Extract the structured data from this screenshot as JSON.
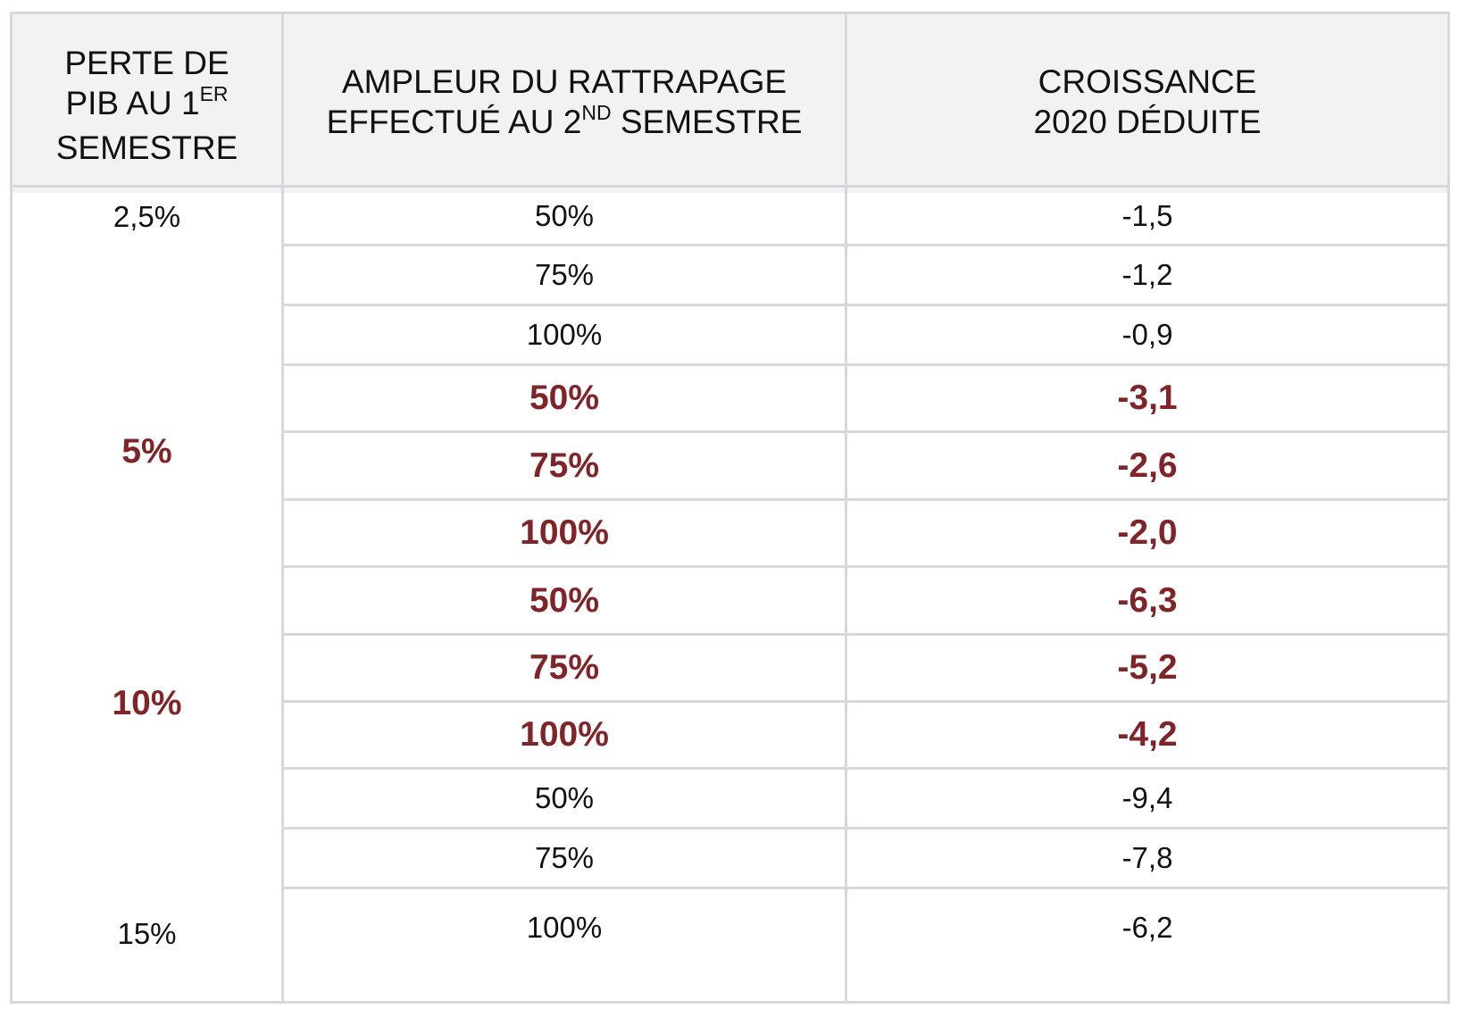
{
  "table": {
    "headers": {
      "col1": {
        "line1": "PERTE DE",
        "line2_pre": "PIB AU 1",
        "line2_sup": "ER",
        "line3": "SEMESTRE"
      },
      "col2": {
        "line1": "AMPLEUR DU RATTRAPAGE",
        "line2_pre": "EFFECTUÉ AU 2",
        "line2_sup": "ND",
        "line2_post": " SEMESTRE"
      },
      "col3": {
        "line1": "CROISSANCE",
        "line2": "2020 DÉDUITE"
      }
    },
    "groups": [
      {
        "loss": "2,5%",
        "highlight": false
      },
      {
        "loss": "5%",
        "highlight": true
      },
      {
        "loss": "10%",
        "highlight": true
      },
      {
        "loss": "15%",
        "highlight": false
      }
    ],
    "rows": [
      {
        "recovery": "50%",
        "growth": "-1,5",
        "highlight": false
      },
      {
        "recovery": "75%",
        "growth": "-1,2",
        "highlight": false
      },
      {
        "recovery": "100%",
        "growth": "-0,9",
        "highlight": false
      },
      {
        "recovery": "50%",
        "growth": "-3,1",
        "highlight": true
      },
      {
        "recovery": "75%",
        "growth": "-2,6",
        "highlight": true
      },
      {
        "recovery": "100%",
        "growth": "-2,0",
        "highlight": true
      },
      {
        "recovery": "50%",
        "growth": "-6,3",
        "highlight": true
      },
      {
        "recovery": "75%",
        "growth": "-5,2",
        "highlight": true
      },
      {
        "recovery": "100%",
        "growth": "-4,2",
        "highlight": true
      },
      {
        "recovery": "50%",
        "growth": "-9,4",
        "highlight": false
      },
      {
        "recovery": "75%",
        "growth": "-7,8",
        "highlight": false
      },
      {
        "recovery": "100%",
        "growth": "-6,2",
        "highlight": false
      }
    ]
  },
  "colors": {
    "highlight": "#7f2428",
    "text": "#111111",
    "header_bg": "#f2f2f2",
    "grid": "#d7d7de"
  }
}
